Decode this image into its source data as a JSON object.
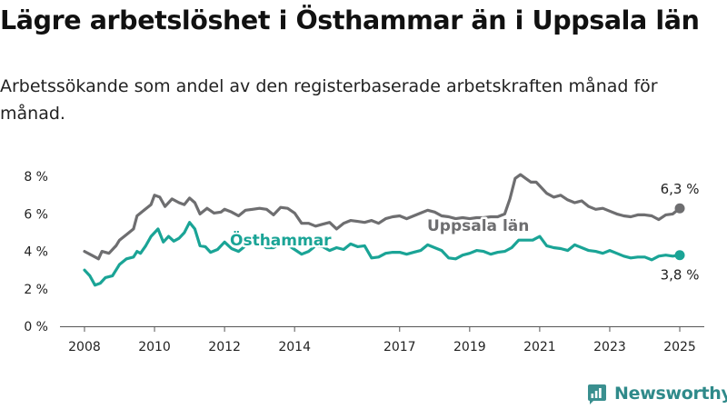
{
  "header": {
    "title": "Lägre arbetslöshet i Östhammar än i Uppsala län",
    "subtitle": "Arbetssökande som andel av den registerbaserade arbetskraften månad för månad."
  },
  "brand": {
    "name": "Newsworthy",
    "icon": "bar-chart-logo-icon",
    "color": "#3a8f8f"
  },
  "chart_data": {
    "type": "line",
    "title": "Lägre arbetslöshet i Östhammar än i Uppsala län",
    "subtitle": "Arbetssökande som andel av den registerbaserade arbetskraften månad för månad.",
    "xlabel": "",
    "ylabel": "",
    "x_ticks": [
      {
        "value": 2008,
        "label": "2008"
      },
      {
        "value": 2010,
        "label": "2010"
      },
      {
        "value": 2012,
        "label": "2012"
      },
      {
        "value": 2014,
        "label": "2014"
      },
      {
        "value": 2017,
        "label": "2017"
      },
      {
        "value": 2019,
        "label": "2019"
      },
      {
        "value": 2021,
        "label": "2021"
      },
      {
        "value": 2023,
        "label": "2023"
      },
      {
        "value": 2025,
        "label": "2025"
      }
    ],
    "y_ticks": [
      {
        "value": 0,
        "label": "0 %"
      },
      {
        "value": 2,
        "label": "2 %"
      },
      {
        "value": 4,
        "label": "4 %"
      },
      {
        "value": 6,
        "label": "6 %"
      },
      {
        "value": 8,
        "label": "8 %"
      }
    ],
    "xlim": [
      2007.3,
      2025.7
    ],
    "ylim": [
      0,
      8.5
    ],
    "grid": false,
    "legend": "inline labels",
    "series": [
      {
        "name": "Uppsala län",
        "color": "#6e6e70",
        "end_label": "6,3 %",
        "points": [
          [
            2008.0,
            4.0
          ],
          [
            2008.2,
            3.8
          ],
          [
            2008.4,
            3.6
          ],
          [
            2008.5,
            4.0
          ],
          [
            2008.7,
            3.9
          ],
          [
            2008.9,
            4.3
          ],
          [
            2009.0,
            4.6
          ],
          [
            2009.2,
            4.9
          ],
          [
            2009.4,
            5.2
          ],
          [
            2009.5,
            5.9
          ],
          [
            2009.7,
            6.2
          ],
          [
            2009.9,
            6.5
          ],
          [
            2010.0,
            7.0
          ],
          [
            2010.15,
            6.9
          ],
          [
            2010.3,
            6.4
          ],
          [
            2010.5,
            6.8
          ],
          [
            2010.7,
            6.6
          ],
          [
            2010.85,
            6.5
          ],
          [
            2011.0,
            6.85
          ],
          [
            2011.15,
            6.6
          ],
          [
            2011.3,
            6.0
          ],
          [
            2011.5,
            6.3
          ],
          [
            2011.7,
            6.05
          ],
          [
            2011.9,
            6.1
          ],
          [
            2012.0,
            6.25
          ],
          [
            2012.2,
            6.1
          ],
          [
            2012.4,
            5.9
          ],
          [
            2012.6,
            6.2
          ],
          [
            2012.8,
            6.25
          ],
          [
            2013.0,
            6.3
          ],
          [
            2013.2,
            6.25
          ],
          [
            2013.4,
            5.95
          ],
          [
            2013.6,
            6.35
          ],
          [
            2013.8,
            6.3
          ],
          [
            2014.0,
            6.05
          ],
          [
            2014.2,
            5.5
          ],
          [
            2014.4,
            5.5
          ],
          [
            2014.6,
            5.35
          ],
          [
            2014.8,
            5.45
          ],
          [
            2015.0,
            5.55
          ],
          [
            2015.2,
            5.2
          ],
          [
            2015.4,
            5.5
          ],
          [
            2015.6,
            5.65
          ],
          [
            2015.8,
            5.6
          ],
          [
            2016.0,
            5.55
          ],
          [
            2016.2,
            5.65
          ],
          [
            2016.4,
            5.5
          ],
          [
            2016.6,
            5.75
          ],
          [
            2016.8,
            5.85
          ],
          [
            2017.0,
            5.9
          ],
          [
            2017.2,
            5.75
          ],
          [
            2017.4,
            5.9
          ],
          [
            2017.6,
            6.05
          ],
          [
            2017.8,
            6.2
          ],
          [
            2018.0,
            6.1
          ],
          [
            2018.2,
            5.9
          ],
          [
            2018.4,
            5.85
          ],
          [
            2018.6,
            5.75
          ],
          [
            2018.8,
            5.8
          ],
          [
            2019.0,
            5.75
          ],
          [
            2019.2,
            5.8
          ],
          [
            2019.4,
            5.8
          ],
          [
            2019.6,
            5.85
          ],
          [
            2019.8,
            5.85
          ],
          [
            2020.0,
            6.0
          ],
          [
            2020.15,
            6.8
          ],
          [
            2020.3,
            7.9
          ],
          [
            2020.45,
            8.1
          ],
          [
            2020.6,
            7.9
          ],
          [
            2020.75,
            7.7
          ],
          [
            2020.9,
            7.7
          ],
          [
            2021.0,
            7.5
          ],
          [
            2021.2,
            7.1
          ],
          [
            2021.4,
            6.9
          ],
          [
            2021.6,
            7.0
          ],
          [
            2021.8,
            6.75
          ],
          [
            2022.0,
            6.6
          ],
          [
            2022.2,
            6.7
          ],
          [
            2022.4,
            6.4
          ],
          [
            2022.6,
            6.25
          ],
          [
            2022.8,
            6.3
          ],
          [
            2023.0,
            6.15
          ],
          [
            2023.2,
            6.0
          ],
          [
            2023.4,
            5.9
          ],
          [
            2023.6,
            5.85
          ],
          [
            2023.8,
            5.95
          ],
          [
            2024.0,
            5.95
          ],
          [
            2024.2,
            5.9
          ],
          [
            2024.4,
            5.7
          ],
          [
            2024.6,
            5.95
          ],
          [
            2024.8,
            6.0
          ],
          [
            2025.0,
            6.3
          ]
        ]
      },
      {
        "name": "Östhammar",
        "color": "#1aa496",
        "end_label": "3,8 %",
        "points": [
          [
            2008.0,
            3.0
          ],
          [
            2008.15,
            2.7
          ],
          [
            2008.3,
            2.2
          ],
          [
            2008.45,
            2.3
          ],
          [
            2008.6,
            2.6
          ],
          [
            2008.8,
            2.7
          ],
          [
            2009.0,
            3.3
          ],
          [
            2009.2,
            3.6
          ],
          [
            2009.4,
            3.7
          ],
          [
            2009.5,
            4.0
          ],
          [
            2009.6,
            3.9
          ],
          [
            2009.75,
            4.3
          ],
          [
            2009.9,
            4.8
          ],
          [
            2010.1,
            5.2
          ],
          [
            2010.25,
            4.5
          ],
          [
            2010.4,
            4.8
          ],
          [
            2010.55,
            4.55
          ],
          [
            2010.7,
            4.7
          ],
          [
            2010.85,
            5.0
          ],
          [
            2011.0,
            5.55
          ],
          [
            2011.15,
            5.2
          ],
          [
            2011.3,
            4.3
          ],
          [
            2011.45,
            4.25
          ],
          [
            2011.6,
            3.95
          ],
          [
            2011.8,
            4.1
          ],
          [
            2012.0,
            4.5
          ],
          [
            2012.2,
            4.15
          ],
          [
            2012.4,
            4.0
          ],
          [
            2012.6,
            4.3
          ],
          [
            2012.8,
            4.35
          ],
          [
            2013.0,
            4.45
          ],
          [
            2013.2,
            4.2
          ],
          [
            2013.4,
            4.2
          ],
          [
            2013.6,
            4.4
          ],
          [
            2013.8,
            4.35
          ],
          [
            2014.0,
            4.1
          ],
          [
            2014.2,
            3.85
          ],
          [
            2014.4,
            4.0
          ],
          [
            2014.6,
            4.3
          ],
          [
            2014.8,
            4.25
          ],
          [
            2015.0,
            4.05
          ],
          [
            2015.2,
            4.2
          ],
          [
            2015.4,
            4.1
          ],
          [
            2015.6,
            4.4
          ],
          [
            2015.8,
            4.25
          ],
          [
            2016.0,
            4.3
          ],
          [
            2016.2,
            3.65
          ],
          [
            2016.4,
            3.7
          ],
          [
            2016.6,
            3.9
          ],
          [
            2016.8,
            3.95
          ],
          [
            2017.0,
            3.95
          ],
          [
            2017.2,
            3.85
          ],
          [
            2017.4,
            3.95
          ],
          [
            2017.6,
            4.05
          ],
          [
            2017.8,
            4.35
          ],
          [
            2018.0,
            4.2
          ],
          [
            2018.2,
            4.05
          ],
          [
            2018.4,
            3.65
          ],
          [
            2018.6,
            3.6
          ],
          [
            2018.8,
            3.8
          ],
          [
            2019.0,
            3.9
          ],
          [
            2019.2,
            4.05
          ],
          [
            2019.4,
            4.0
          ],
          [
            2019.6,
            3.85
          ],
          [
            2019.8,
            3.95
          ],
          [
            2020.0,
            4.0
          ],
          [
            2020.2,
            4.2
          ],
          [
            2020.4,
            4.6
          ],
          [
            2020.6,
            4.6
          ],
          [
            2020.8,
            4.6
          ],
          [
            2021.0,
            4.8
          ],
          [
            2021.2,
            4.3
          ],
          [
            2021.4,
            4.2
          ],
          [
            2021.6,
            4.15
          ],
          [
            2021.8,
            4.05
          ],
          [
            2022.0,
            4.35
          ],
          [
            2022.2,
            4.2
          ],
          [
            2022.4,
            4.05
          ],
          [
            2022.6,
            4.0
          ],
          [
            2022.8,
            3.9
          ],
          [
            2023.0,
            4.05
          ],
          [
            2023.2,
            3.9
          ],
          [
            2023.4,
            3.75
          ],
          [
            2023.6,
            3.65
          ],
          [
            2023.8,
            3.7
          ],
          [
            2024.0,
            3.7
          ],
          [
            2024.2,
            3.55
          ],
          [
            2024.4,
            3.75
          ],
          [
            2024.6,
            3.8
          ],
          [
            2024.8,
            3.75
          ],
          [
            2025.0,
            3.8
          ]
        ]
      }
    ]
  }
}
